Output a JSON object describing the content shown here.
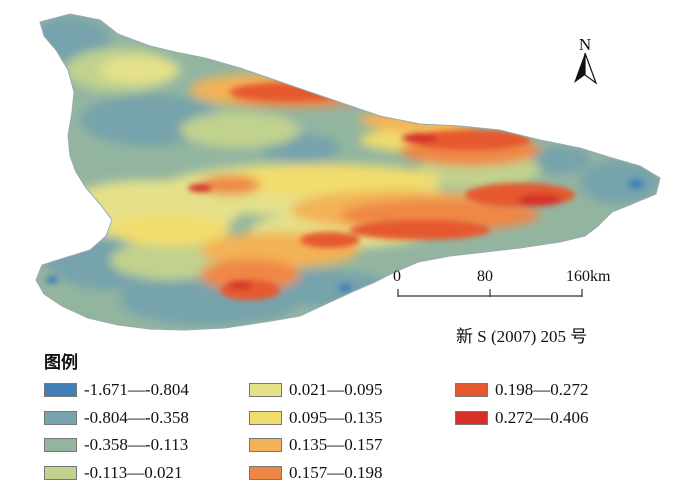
{
  "north_label": "N",
  "scale": {
    "ticks": [
      "0",
      "80",
      "160km"
    ]
  },
  "source_note": "新 S (2007) 205 号",
  "legend": {
    "title": "图例",
    "classes": [
      {
        "label": "-1.671—-0.804",
        "color": "#3f7fb6"
      },
      {
        "label": "-0.804—-0.358",
        "color": "#76a3ac"
      },
      {
        "label": "-0.358—-0.113",
        "color": "#93b5a0"
      },
      {
        "label": "-0.113—0.021",
        "color": "#c1d28e"
      },
      {
        "label": "0.021—0.095",
        "color": "#e4e18a"
      },
      {
        "label": "0.095—0.135",
        "color": "#f1dd6d"
      },
      {
        "label": "0.135—0.157",
        "color": "#f3b257"
      },
      {
        "label": "0.157—0.198",
        "color": "#ef8744"
      },
      {
        "label": "0.198—0.272",
        "color": "#e6592e"
      },
      {
        "label": "0.272—0.406",
        "color": "#d6302a"
      }
    ]
  }
}
